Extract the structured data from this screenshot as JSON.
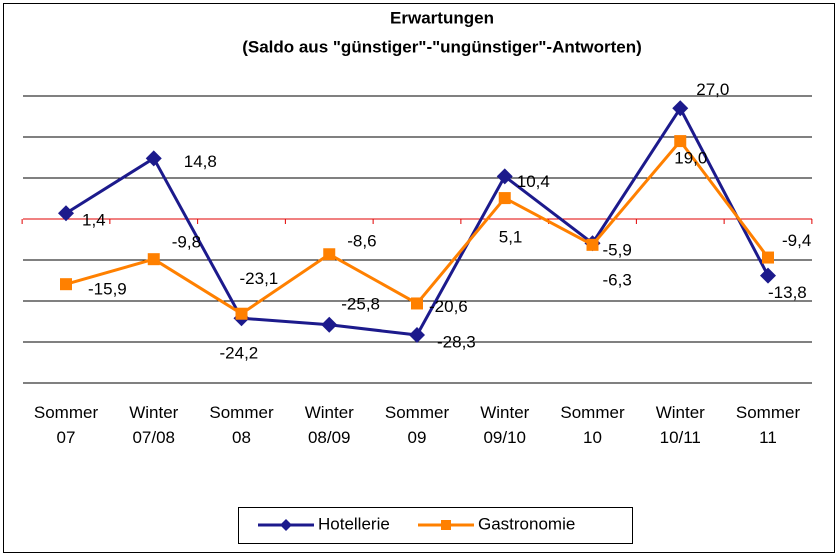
{
  "chart_data": {
    "type": "line",
    "title": "Erwartungen",
    "subtitle": "(Saldo aus \"günstiger\"-\"ungünstiger\"-Antworten)",
    "categories": [
      "Sommer 07",
      "Winter 07/08",
      "Sommer 08",
      "Winter 08/09",
      "Sommer 09",
      "Winter 09/10",
      "Sommer 10",
      "Winter 10/11",
      "Sommer 11"
    ],
    "series": [
      {
        "name": "Hotellerie",
        "color": "#1c1a8c",
        "marker": "diamond",
        "values": [
          1.4,
          14.8,
          -24.2,
          -25.8,
          -28.3,
          10.4,
          -5.9,
          27.0,
          -13.8
        ],
        "value_labels": [
          "1,4",
          "14,8",
          "-24,2",
          "-25,8",
          "-28,3",
          "10,4",
          "-5,9",
          "27,0",
          "-13,8"
        ]
      },
      {
        "name": "Gastronomie",
        "color": "#ff8000",
        "marker": "square",
        "values": [
          -15.9,
          -9.8,
          -23.1,
          -8.6,
          -20.6,
          5.1,
          -6.3,
          19.0,
          -9.4
        ],
        "value_labels": [
          "-15,9",
          "-9,8",
          "-23,1",
          "-8,6",
          "-20,6",
          "5,1",
          "-6,3",
          "19,0",
          "-9,4"
        ]
      }
    ],
    "ylim": [
      -40,
      30
    ],
    "yticks": [
      -40,
      -30,
      -20,
      -10,
      0,
      10,
      20,
      30
    ],
    "grid": true,
    "zero_line_color": "#e00000",
    "legend": "bottom"
  }
}
